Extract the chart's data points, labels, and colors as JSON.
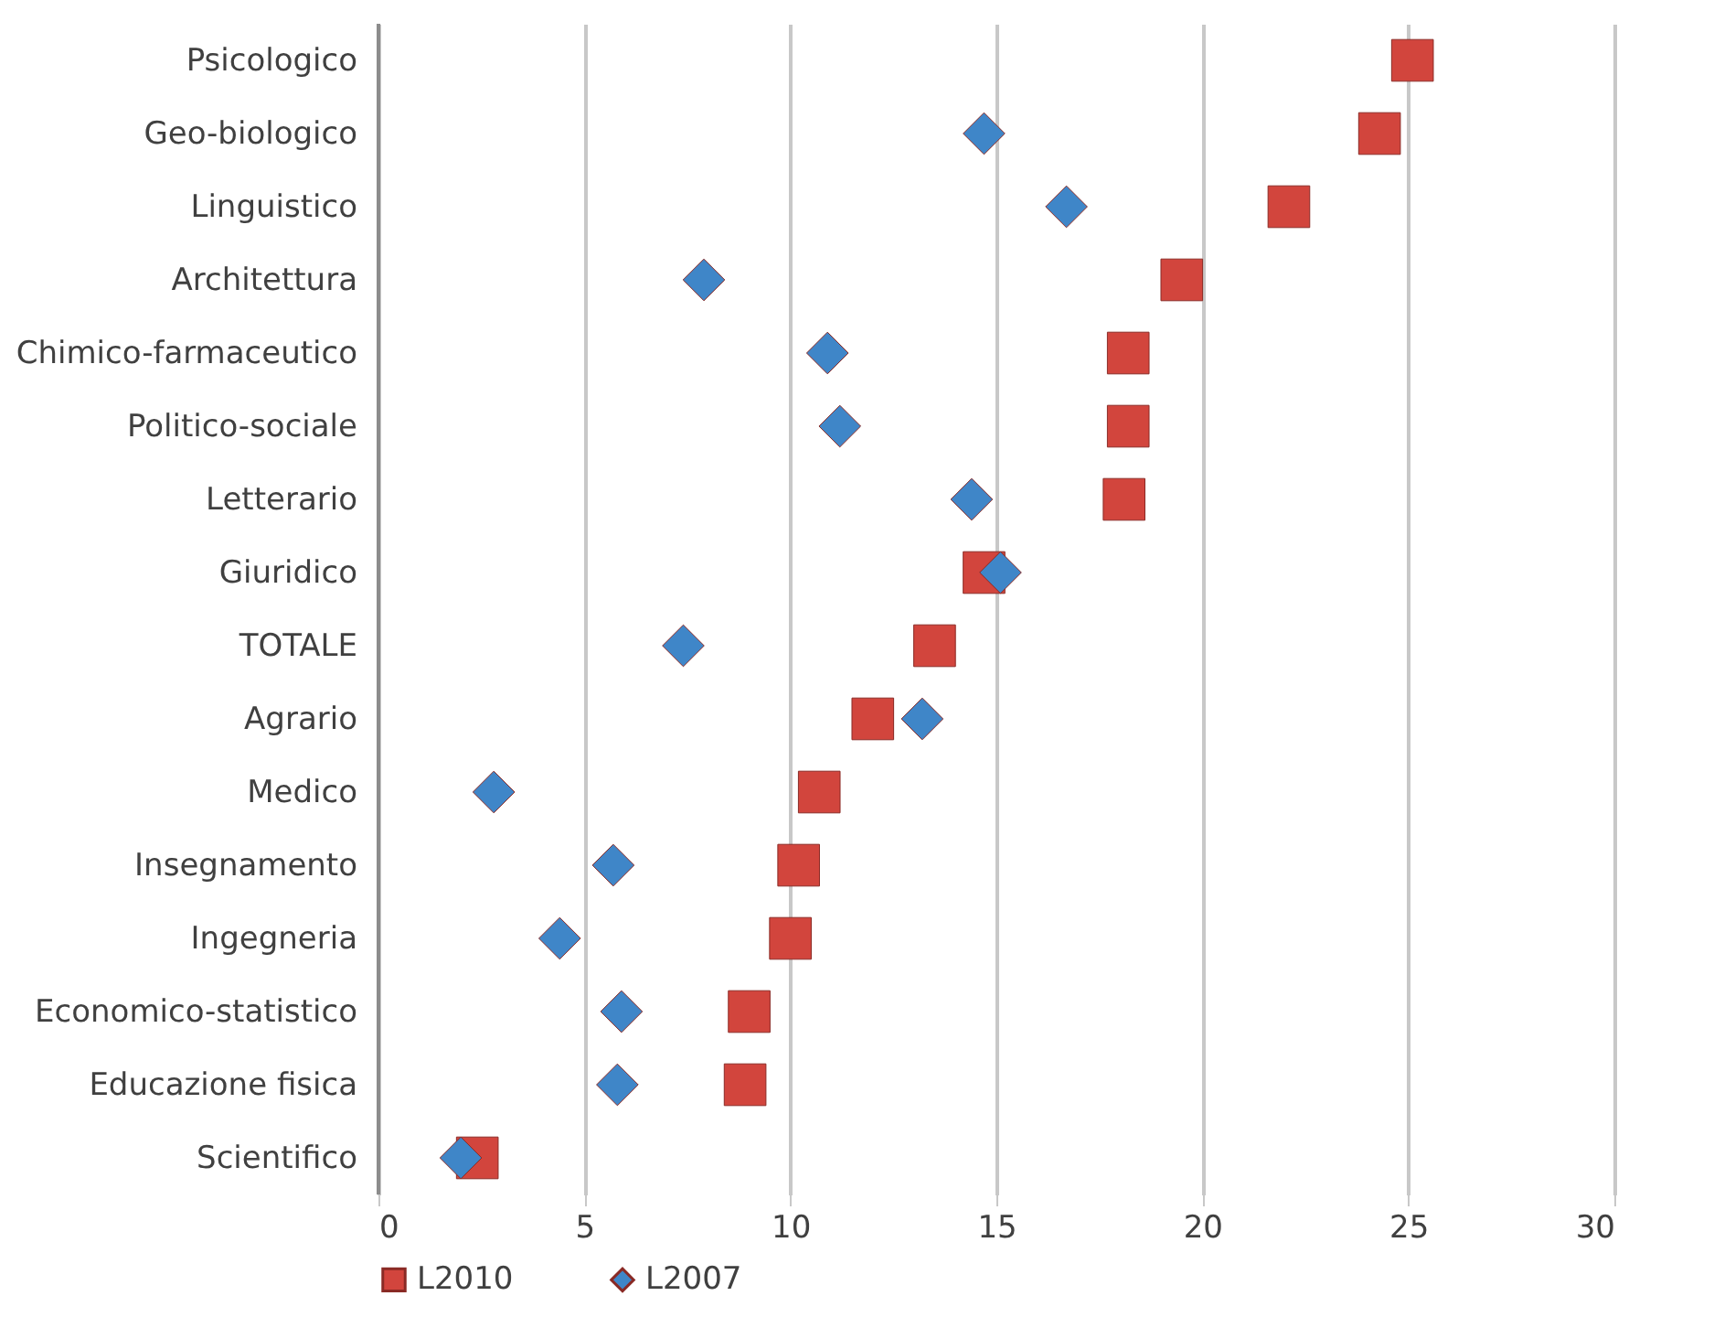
{
  "chart_data": {
    "type": "scatter",
    "orientation": "horizontal",
    "categories": [
      "Psicologico",
      "Geo-biologico",
      "Linguistico",
      "Architettura",
      "Chimico-farmaceutico",
      "Politico-sociale",
      "Letterario",
      "Giuridico",
      "TOTALE",
      "Agrario",
      "Medico",
      "Insegnamento",
      "Ingegneria",
      "Economico-statistico",
      "Educazione fisica",
      "Scientifico"
    ],
    "series": [
      {
        "name": "L2010",
        "color": "#d2453d",
        "marker": "square",
        "values": [
          25.1,
          24.3,
          22.1,
          19.5,
          18.2,
          18.2,
          18.1,
          14.7,
          13.5,
          12.0,
          10.7,
          10.2,
          10.0,
          9.0,
          8.9,
          2.4
        ]
      },
      {
        "name": "L2007",
        "color": "#3f86c8",
        "marker": "diamond",
        "values": [
          null,
          14.7,
          16.7,
          7.9,
          10.9,
          11.2,
          14.4,
          15.1,
          7.4,
          13.2,
          2.8,
          5.7,
          4.4,
          5.9,
          5.8,
          2.0
        ]
      }
    ],
    "xlim": [
      0,
      30
    ],
    "xticks": [
      0,
      5,
      10,
      15,
      20,
      25,
      30
    ],
    "grid": "x",
    "legend": "bottom"
  }
}
